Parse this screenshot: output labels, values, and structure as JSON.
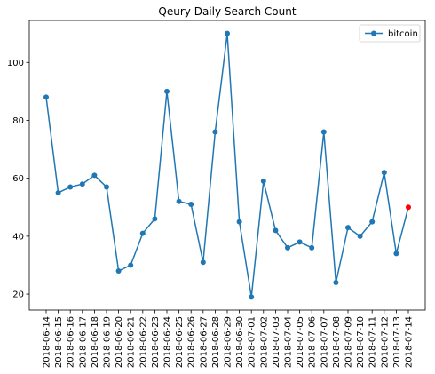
{
  "chart_data": {
    "type": "line",
    "title": "Qeury Daily Search Count",
    "xlabel": "",
    "ylabel": "",
    "x": [
      "2018-06-14",
      "2018-06-15",
      "2018-06-16",
      "2018-06-17",
      "2018-06-18",
      "2018-06-19",
      "2018-06-20",
      "2018-06-21",
      "2018-06-22",
      "2018-06-23",
      "2018-06-24",
      "2018-06-25",
      "2018-06-26",
      "2018-06-27",
      "2018-06-28",
      "2018-06-29",
      "2018-06-30",
      "2018-07-01",
      "2018-07-02",
      "2018-07-03",
      "2018-07-04",
      "2018-07-05",
      "2018-07-06",
      "2018-07-07",
      "2018-07-08",
      "2018-07-09",
      "2018-07-10",
      "2018-07-11",
      "2018-07-12",
      "2018-07-13",
      "2018-07-14"
    ],
    "series": [
      {
        "name": "bitcoin",
        "color": "#1f77b4",
        "values": [
          88,
          55,
          57,
          58,
          61,
          57,
          28,
          30,
          41,
          46,
          90,
          52,
          51,
          31,
          76,
          110,
          45,
          19,
          59,
          42,
          36,
          38,
          36,
          76,
          24,
          43,
          40,
          45,
          62,
          34,
          50
        ]
      }
    ],
    "highlight": {
      "index": 30,
      "color": "#ff0000"
    },
    "ylim": [
      14.5,
      114.5
    ],
    "yticks": [
      20,
      40,
      60,
      80,
      100
    ],
    "grid": false,
    "legend_position": "top-right"
  }
}
